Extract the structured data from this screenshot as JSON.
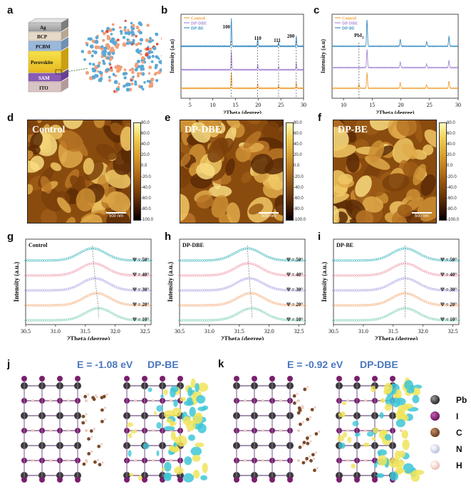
{
  "panels": {
    "a": "a",
    "b": "b",
    "c": "c",
    "d": "d",
    "e": "e",
    "f": "f",
    "g": "g",
    "h": "h",
    "i": "i",
    "j": "j",
    "k": "k"
  },
  "device_stack": {
    "layers": [
      "Ag",
      "BCP",
      "PCBM",
      "Perovskite",
      "SAM",
      "ITO"
    ]
  },
  "xrd": {
    "ylabel": "Intensity (a.u)",
    "xlabel": "2Theta (degree)",
    "legend": [
      "Control",
      "DP-DBE",
      "DP-BE"
    ],
    "legend_colors": [
      "#f0a23a",
      "#a98ad8",
      "#3b8fc4"
    ],
    "b_peaks": [
      "100",
      "110",
      "111",
      "200"
    ],
    "c_peak": "PbI",
    "c_peak_sub": "2",
    "xticks": [
      "5",
      "10",
      "15",
      "20",
      "25",
      "30"
    ]
  },
  "afm": [
    {
      "title": "Control",
      "scale": "500 nm"
    },
    {
      "title": "DP-DBE",
      "scale": "500 nm"
    },
    {
      "title": "DP-BE",
      "scale": "500 nm"
    }
  ],
  "colorbar_ticks": [
    "80.0",
    "60.0",
    "40.0",
    "20.0",
    "0.0",
    "-20.0",
    "-40.0",
    "-60.0",
    "-80.0",
    "-100.0"
  ],
  "gixrd": {
    "ylabel": "Intensity (a.u.)",
    "xlabel": "2Theta (degree)",
    "xticks": [
      "30.5",
      "31.0",
      "31.5",
      "32.0",
      "32.5"
    ],
    "psi": [
      "Ψ = 50°",
      "Ψ = 40°",
      "Ψ = 30°",
      "Ψ = 20°",
      "Ψ = 10°"
    ],
    "psi_colors": [
      "#5fc2c9",
      "#f2a9b8",
      "#b5b2e6",
      "#f6b88c",
      "#8fd6b9"
    ],
    "samples": [
      "Control",
      "DP-DBE",
      "DP-BE"
    ]
  },
  "dft": {
    "j": {
      "energy": "E = -1.08 eV",
      "molecule": "DP-BE"
    },
    "k": {
      "energy": "E = -0.92 eV",
      "molecule": "DP-DBE"
    }
  },
  "atom_legend": [
    {
      "symbol": "Pb",
      "color": "#3a3a3a"
    },
    {
      "symbol": "I",
      "color": "#7a1f6e"
    },
    {
      "symbol": "C",
      "color": "#7a4a2a"
    },
    {
      "symbol": "N",
      "color": "#c7cde6"
    },
    {
      "symbol": "H",
      "color": "#f1cbc3"
    }
  ],
  "chart_data": [
    {
      "type": "line",
      "title": "",
      "xlabel": "2Theta (degree)",
      "ylabel": "Intensity (a.u)",
      "xlim": [
        5,
        30
      ],
      "series": [
        {
          "name": "Control",
          "peaks": [
            14.1,
            19.9,
            24.5,
            28.4
          ]
        },
        {
          "name": "DP-DBE",
          "peaks": [
            14.1,
            19.9,
            24.5,
            28.4
          ]
        },
        {
          "name": "DP-BE",
          "peaks": [
            14.1,
            19.9,
            24.5,
            28.4
          ]
        }
      ]
    },
    {
      "type": "line",
      "title": "",
      "xlabel": "2Theta (degree)",
      "ylabel": "Intensity (a.u.)",
      "xlim": [
        10,
        30
      ],
      "series": [
        {
          "name": "Control",
          "peaks": [
            12.7,
            14.1,
            19.9,
            24.5,
            28.4
          ]
        },
        {
          "name": "DP-DBE",
          "peaks": [
            14.1,
            19.9,
            24.5,
            28.4
          ]
        },
        {
          "name": "DP-BE",
          "peaks": [
            14.1,
            19.9,
            24.5,
            28.4
          ]
        }
      ]
    },
    {
      "type": "line",
      "title": "Control",
      "xlabel": "2Theta (degree)",
      "ylabel": "Intensity (a.u.)",
      "xlim": [
        30.5,
        32.6
      ],
      "series": [
        {
          "name": "Ψ = 50°",
          "peak": 31.62
        },
        {
          "name": "Ψ = 40°",
          "peak": 31.64
        },
        {
          "name": "Ψ = 30°",
          "peak": 31.66
        },
        {
          "name": "Ψ = 20°",
          "peak": 31.69
        },
        {
          "name": "Ψ = 10°",
          "peak": 31.72
        }
      ]
    },
    {
      "type": "line",
      "title": "DP-DBE",
      "xlabel": "2Theta (degree)",
      "ylabel": "Intensity (a.u.)",
      "xlim": [
        30.5,
        32.6
      ],
      "series": [
        {
          "name": "Ψ = 50°",
          "peak": 31.64
        },
        {
          "name": "Ψ = 40°",
          "peak": 31.65
        },
        {
          "name": "Ψ = 30°",
          "peak": 31.67
        },
        {
          "name": "Ψ = 20°",
          "peak": 31.69
        },
        {
          "name": "Ψ = 10°",
          "peak": 31.71
        }
      ]
    },
    {
      "type": "line",
      "title": "DP-BE",
      "xlabel": "2Theta (degree)",
      "ylabel": "Intensity (a.u.)",
      "xlim": [
        30.5,
        32.6
      ],
      "series": [
        {
          "name": "Ψ = 50°",
          "peak": 31.7
        },
        {
          "name": "Ψ = 40°",
          "peak": 31.7
        },
        {
          "name": "Ψ = 30°",
          "peak": 31.7
        },
        {
          "name": "Ψ = 20°",
          "peak": 31.7
        },
        {
          "name": "Ψ = 10°",
          "peak": 31.7
        }
      ]
    }
  ]
}
